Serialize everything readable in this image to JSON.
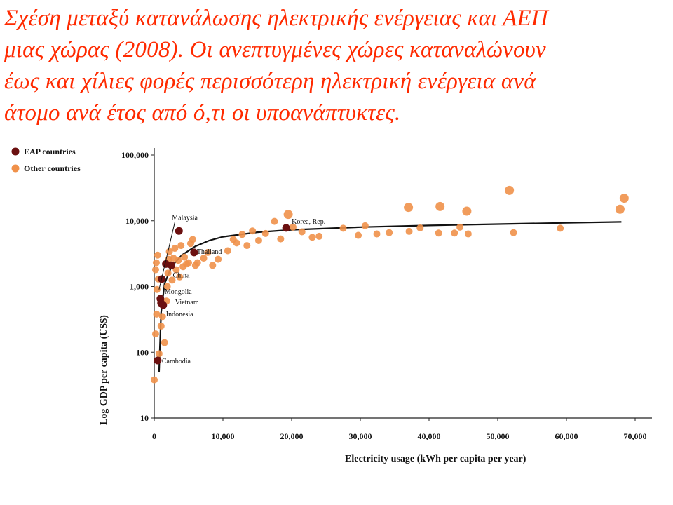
{
  "slide": {
    "title_lines": [
      "Σχέση μεταξύ κατανάλωσης ηλεκτρικής ενέργειας και  ΑΕΠ",
      "μιας χώρας (2008). Οι ανεπτυγμένες χώρες καταναλώνουν",
      "έως και χίλιες φορές περισσότερη ηλεκτρική ενέργεια ανά",
      "άτομο ανά έτος από ό,τι οι υποανάπτυκτες."
    ],
    "title_color": "#ff2a00"
  },
  "chart_data": {
    "type": "scatter",
    "xlabel": "Electricity usage (kWh per capita per year)",
    "ylabel": "Log GDP per capita (US$)",
    "x_scale": "linear",
    "y_scale": "log",
    "xlim": [
      0,
      70000
    ],
    "ylim": [
      10,
      100000
    ],
    "x_ticks": [
      0,
      10000,
      20000,
      30000,
      40000,
      50000,
      60000,
      70000
    ],
    "x_tick_labels": [
      "0",
      "10,000",
      "20,000",
      "30,000",
      "40,000",
      "50,000",
      "60,000",
      "70,000"
    ],
    "y_ticks": [
      10,
      100,
      1000,
      10000,
      100000
    ],
    "y_tick_labels": [
      "10",
      "100",
      "1,000",
      "10,000",
      "100,000"
    ],
    "legend": {
      "position": "top-left"
    },
    "colors": {
      "eap": "#6b1010",
      "other": "#f0914a",
      "trend": "#111111"
    },
    "series": [
      {
        "name": "EAP countries",
        "points": [
          {
            "x": 19200,
            "y": 7800,
            "label": "Korea, Rep."
          },
          {
            "x": 5800,
            "y": 3300,
            "label": "Thailand"
          },
          {
            "x": 3600,
            "y": 7000,
            "label": "Malaysia"
          },
          {
            "x": 2500,
            "y": 2100,
            "label": "China"
          },
          {
            "x": 1700,
            "y": 2200
          },
          {
            "x": 1100,
            "y": 1300
          },
          {
            "x": 900,
            "y": 650,
            "label": "Mongolia"
          },
          {
            "x": 1000,
            "y": 560,
            "label": "Vietnam"
          },
          {
            "x": 1300,
            "y": 520,
            "label": "Indonesia"
          },
          {
            "x": 500,
            "y": 75,
            "label": "Cambodia"
          }
        ]
      },
      {
        "name": "Other countries",
        "points": [
          {
            "x": 0,
            "y": 38
          },
          {
            "x": 200,
            "y": 190
          },
          {
            "x": 350,
            "y": 380
          },
          {
            "x": 400,
            "y": 900
          },
          {
            "x": 200,
            "y": 1800
          },
          {
            "x": 300,
            "y": 2300
          },
          {
            "x": 500,
            "y": 3000
          },
          {
            "x": 600,
            "y": 1300
          },
          {
            "x": 700,
            "y": 95
          },
          {
            "x": 1000,
            "y": 250
          },
          {
            "x": 1200,
            "y": 350
          },
          {
            "x": 1500,
            "y": 140
          },
          {
            "x": 1800,
            "y": 600
          },
          {
            "x": 1900,
            "y": 1000
          },
          {
            "x": 2000,
            "y": 1600
          },
          {
            "x": 2100,
            "y": 2600
          },
          {
            "x": 2200,
            "y": 3400
          },
          {
            "x": 2600,
            "y": 1250
          },
          {
            "x": 2800,
            "y": 2700
          },
          {
            "x": 3000,
            "y": 3800
          },
          {
            "x": 3200,
            "y": 1800
          },
          {
            "x": 3500,
            "y": 2500
          },
          {
            "x": 3700,
            "y": 1400
          },
          {
            "x": 3900,
            "y": 4200
          },
          {
            "x": 4200,
            "y": 2000
          },
          {
            "x": 4400,
            "y": 2800
          },
          {
            "x": 4700,
            "y": 2200
          },
          {
            "x": 5000,
            "y": 2300
          },
          {
            "x": 5300,
            "y": 4500
          },
          {
            "x": 5600,
            "y": 5200
          },
          {
            "x": 6000,
            "y": 2100
          },
          {
            "x": 6300,
            "y": 2300
          },
          {
            "x": 7200,
            "y": 2700
          },
          {
            "x": 7800,
            "y": 3300
          },
          {
            "x": 8500,
            "y": 2100
          },
          {
            "x": 9300,
            "y": 2600
          },
          {
            "x": 10700,
            "y": 3500
          },
          {
            "x": 11500,
            "y": 5200
          },
          {
            "x": 12000,
            "y": 4600
          },
          {
            "x": 12800,
            "y": 6200
          },
          {
            "x": 13500,
            "y": 4200
          },
          {
            "x": 14300,
            "y": 7000
          },
          {
            "x": 15200,
            "y": 5000
          },
          {
            "x": 16200,
            "y": 6400
          },
          {
            "x": 17500,
            "y": 9800
          },
          {
            "x": 18400,
            "y": 5300
          },
          {
            "x": 19500,
            "y": 12500
          },
          {
            "x": 20200,
            "y": 8000
          },
          {
            "x": 21500,
            "y": 6800
          },
          {
            "x": 23000,
            "y": 5600
          },
          {
            "x": 24000,
            "y": 5800
          },
          {
            "x": 27500,
            "y": 7700
          },
          {
            "x": 29700,
            "y": 6000
          },
          {
            "x": 30700,
            "y": 8400
          },
          {
            "x": 32400,
            "y": 6300
          },
          {
            "x": 34200,
            "y": 6600
          },
          {
            "x": 37000,
            "y": 16000
          },
          {
            "x": 37100,
            "y": 6900
          },
          {
            "x": 38700,
            "y": 7800
          },
          {
            "x": 41400,
            "y": 6500
          },
          {
            "x": 41600,
            "y": 16500
          },
          {
            "x": 43700,
            "y": 6500
          },
          {
            "x": 44500,
            "y": 8000
          },
          {
            "x": 45500,
            "y": 14000
          },
          {
            "x": 45700,
            "y": 6300
          },
          {
            "x": 51700,
            "y": 29000
          },
          {
            "x": 52300,
            "y": 6600
          },
          {
            "x": 59100,
            "y": 7700
          },
          {
            "x": 67800,
            "y": 15000
          },
          {
            "x": 68400,
            "y": 22000
          }
        ]
      }
    ],
    "trend_line": {
      "points": [
        [
          700,
          50
        ],
        [
          1000,
          400
        ],
        [
          1500,
          1100
        ],
        [
          2500,
          2000
        ],
        [
          4000,
          3000
        ],
        [
          6000,
          4100
        ],
        [
          8000,
          5000
        ],
        [
          10000,
          5700
        ],
        [
          15000,
          6700
        ],
        [
          20000,
          7300
        ],
        [
          30000,
          8000
        ],
        [
          40000,
          8500
        ],
        [
          50000,
          8900
        ],
        [
          60000,
          9300
        ],
        [
          68000,
          9600
        ]
      ]
    }
  }
}
